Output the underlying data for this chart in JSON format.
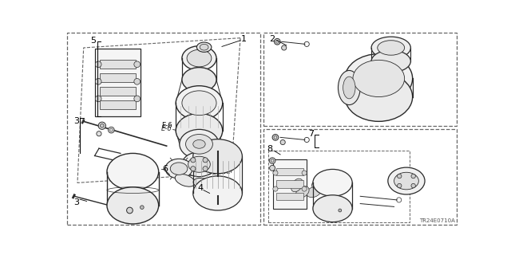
{
  "bg_color": "#ffffff",
  "line_color": "#2a2a2a",
  "label_color": "#000000",
  "diagram_code": "TR24E0710A",
  "border_dash_color": "#666666",
  "border_lw": 0.8
}
